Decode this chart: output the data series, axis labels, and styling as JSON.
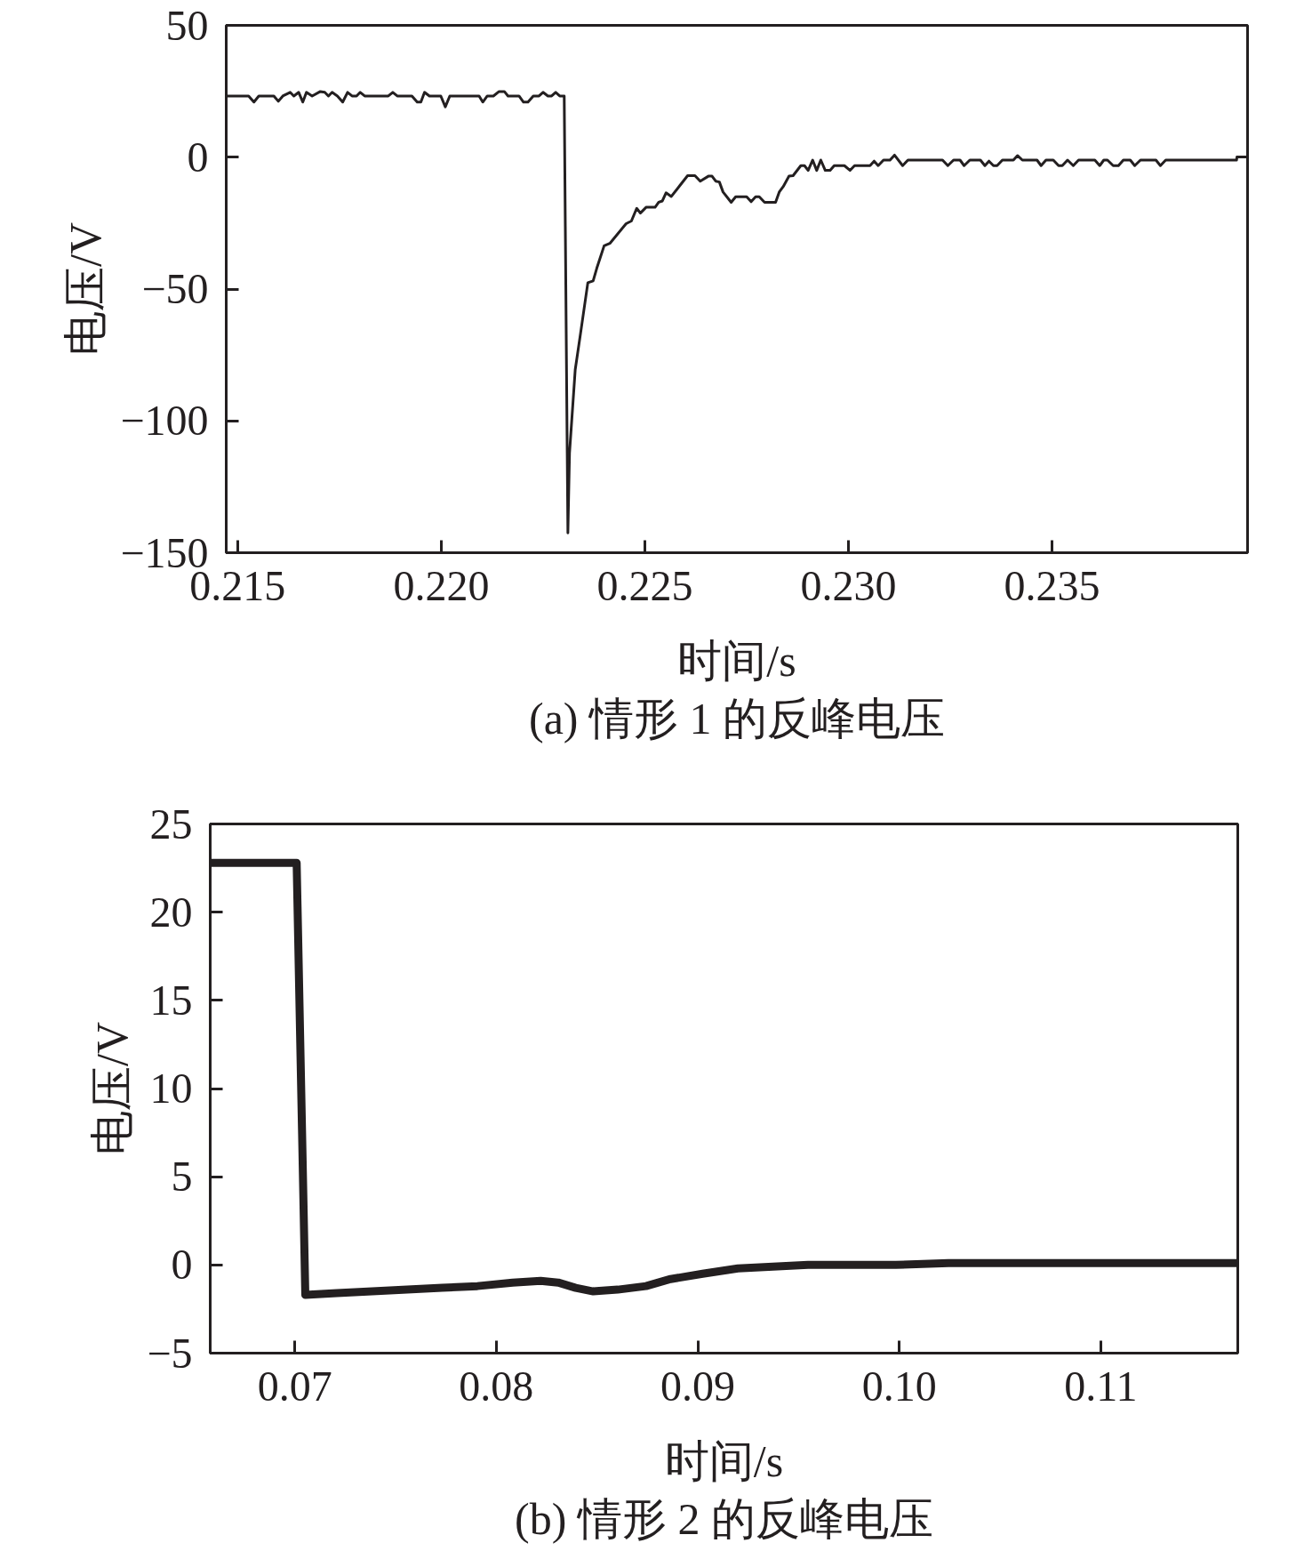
{
  "chart_data": [
    {
      "type": "line",
      "title": "(a) 情形 1 的反峰电压",
      "xlabel": "时间/s",
      "ylabel": "电压/V",
      "xlim": [
        0.21472,
        0.2398
      ],
      "ylim": [
        -150,
        50
      ],
      "xticks": [
        0.215,
        {
          "value": 0.22,
          "label": "0.220"
        },
        0.225,
        {
          "value": 0.23,
          "label": "0.230"
        },
        0.235
      ],
      "yticks": [
        {
          "value": -150,
          "label": "−150"
        },
        {
          "value": -100,
          "label": "−100"
        },
        {
          "value": -50,
          "label": "−50"
        },
        0,
        50
      ],
      "x": [
        0.21472,
        0.21527,
        0.2154,
        0.21552,
        0.21589,
        0.216,
        0.21611,
        0.21629,
        0.21638,
        0.2165,
        0.2166,
        0.21669,
        0.21683,
        0.21703,
        0.21714,
        0.21723,
        0.21732,
        0.21745,
        0.21758,
        0.2177,
        0.21781,
        0.21792,
        0.21801,
        0.21812,
        0.2187,
        0.21881,
        0.21892,
        0.21928,
        0.21941,
        0.2195,
        0.21959,
        0.21971,
        0.21999,
        0.2201,
        0.22021,
        0.22093,
        0.22102,
        0.22113,
        0.22128,
        0.22142,
        0.22155,
        0.22164,
        0.22191,
        0.22202,
        0.22213,
        0.22226,
        0.2224,
        0.2225,
        0.22262,
        0.22271,
        0.22281,
        0.22291,
        0.22302,
        0.22311,
        0.22315,
        0.22329,
        0.22342,
        0.2236,
        0.22373,
        0.22382,
        0.224,
        0.22414,
        0.22454,
        0.22467,
        0.2248,
        0.22489,
        0.22503,
        0.22525,
        0.22534,
        0.22543,
        0.22552,
        0.22565,
        0.22605,
        0.22623,
        0.22636,
        0.22656,
        0.22665,
        0.22674,
        0.22683,
        0.22692,
        0.22712,
        0.22723,
        0.2275,
        0.22761,
        0.22772,
        0.22781,
        0.22794,
        0.22821,
        0.2283,
        0.2284,
        0.22854,
        0.22864,
        0.22883,
        0.22892,
        0.22901,
        0.22912,
        0.22922,
        0.22932,
        0.22943,
        0.22955,
        0.22965,
        0.2299,
        0.23004,
        0.23015,
        0.23053,
        0.23063,
        0.23073,
        0.23086,
        0.23102,
        0.23113,
        0.23133,
        0.23146,
        0.23231,
        0.23244,
        0.23258,
        0.23274,
        0.23284,
        0.23298,
        0.23324,
        0.23335,
        0.23345,
        0.23356,
        0.23365,
        0.23378,
        0.23405,
        0.23415,
        0.23427,
        0.23463,
        0.23473,
        0.23485,
        0.23503,
        0.23516,
        0.23525,
        0.23538,
        0.23552,
        0.23565,
        0.23605,
        0.23617,
        0.23627,
        0.23636,
        0.2365,
        0.23663,
        0.23675,
        0.23692,
        0.23703,
        0.23717,
        0.23755,
        0.23766,
        0.23779,
        0.23953,
        0.23954,
        0.23979
      ],
      "series": [
        {
          "color": "#231f20",
          "values": [
            23.2,
            23.2,
            20.9,
            23.2,
            23.2,
            21.2,
            23.2,
            24.6,
            23.2,
            24.6,
            20.9,
            24.6,
            23.2,
            24.9,
            24.6,
            23.2,
            24.6,
            23.2,
            20.9,
            24.6,
            23.2,
            23.2,
            24.6,
            23.2,
            23.2,
            24.6,
            23.2,
            23.2,
            20.9,
            20.9,
            24.6,
            23.2,
            23.2,
            19.1,
            23.2,
            23.2,
            20.9,
            23.2,
            23.2,
            24.9,
            24.9,
            23.2,
            23.2,
            20.9,
            20.9,
            23.2,
            23.2,
            24.6,
            23.2,
            23.2,
            24.6,
            23.2,
            23.2,
            -142.5,
            -112.2,
            -80.6,
            -66.9,
            -47.6,
            -46.9,
            -42.1,
            -33.6,
            -32.7,
            -25.2,
            -24.2,
            -19.4,
            -21.2,
            -19.0,
            -19.0,
            -17.1,
            -16.6,
            -13.5,
            -14.9,
            -7.0,
            -7.0,
            -9.1,
            -7.2,
            -7.2,
            -9.1,
            -9.4,
            -13.2,
            -17.1,
            -15.0,
            -15.0,
            -16.9,
            -15.0,
            -15.0,
            -17.1,
            -17.1,
            -13.2,
            -11.1,
            -7.2,
            -7.0,
            -3.2,
            -3.2,
            -5.0,
            -1.1,
            -5.0,
            -1.1,
            -5.0,
            -5.0,
            -3.2,
            -3.2,
            -5.0,
            -3.2,
            -3.2,
            -1.5,
            -3.2,
            -1.1,
            -1.1,
            0.8,
            -3.2,
            -1.1,
            -1.1,
            -3.2,
            -1.1,
            -1.1,
            -3.2,
            -1.1,
            -1.1,
            -3.2,
            -1.5,
            -3.2,
            -3.2,
            -1.1,
            -1.1,
            0.6,
            -1.1,
            -1.1,
            -3.2,
            -1.1,
            -1.1,
            -3.2,
            -3.2,
            -1.1,
            -3.2,
            -1.1,
            -1.1,
            -3.2,
            -1.1,
            -1.1,
            -3.2,
            -3.2,
            -1.1,
            -1.1,
            -3.2,
            -1.1,
            -1.1,
            -3.2,
            -1.1,
            -1.1,
            0.1,
            0.1
          ]
        }
      ]
    },
    {
      "type": "line",
      "title": "(b) 情形 2 的反峰电压",
      "xlabel": "时间/s",
      "ylabel": "电压/V",
      "xlim": [
        0.0658,
        0.1168
      ],
      "ylim": [
        -5,
        25
      ],
      "xticks": [
        0.07,
        0.08,
        0.09,
        {
          "value": 0.1,
          "label": "0.10"
        },
        0.11
      ],
      "yticks": [
        {
          "value": -5,
          "label": "−5"
        },
        0,
        5,
        10,
        15,
        20,
        25
      ],
      "x": [
        0.06582,
        0.07,
        0.07009,
        0.07052,
        0.07209,
        0.07384,
        0.07558,
        0.07732,
        0.07906,
        0.08081,
        0.0822,
        0.08307,
        0.08394,
        0.08481,
        0.08603,
        0.08743,
        0.08865,
        0.09024,
        0.09199,
        0.09373,
        0.09547,
        0.09721,
        0.09983,
        0.10244,
        0.10593,
        0.10941,
        0.1129,
        0.11673
      ],
      "series": [
        {
          "color": "#231f20",
          "values": [
            22.8,
            22.8,
            22.8,
            -1.7,
            -1.6,
            -1.5,
            -1.4,
            -1.3,
            -1.2,
            -1.0,
            -0.9,
            -1.0,
            -1.3,
            -1.5,
            -1.4,
            -1.2,
            -0.8,
            -0.5,
            -0.2,
            -0.1,
            0.0,
            0.0,
            0.0,
            0.1,
            0.1,
            0.1,
            0.1,
            0.1
          ]
        }
      ]
    }
  ]
}
